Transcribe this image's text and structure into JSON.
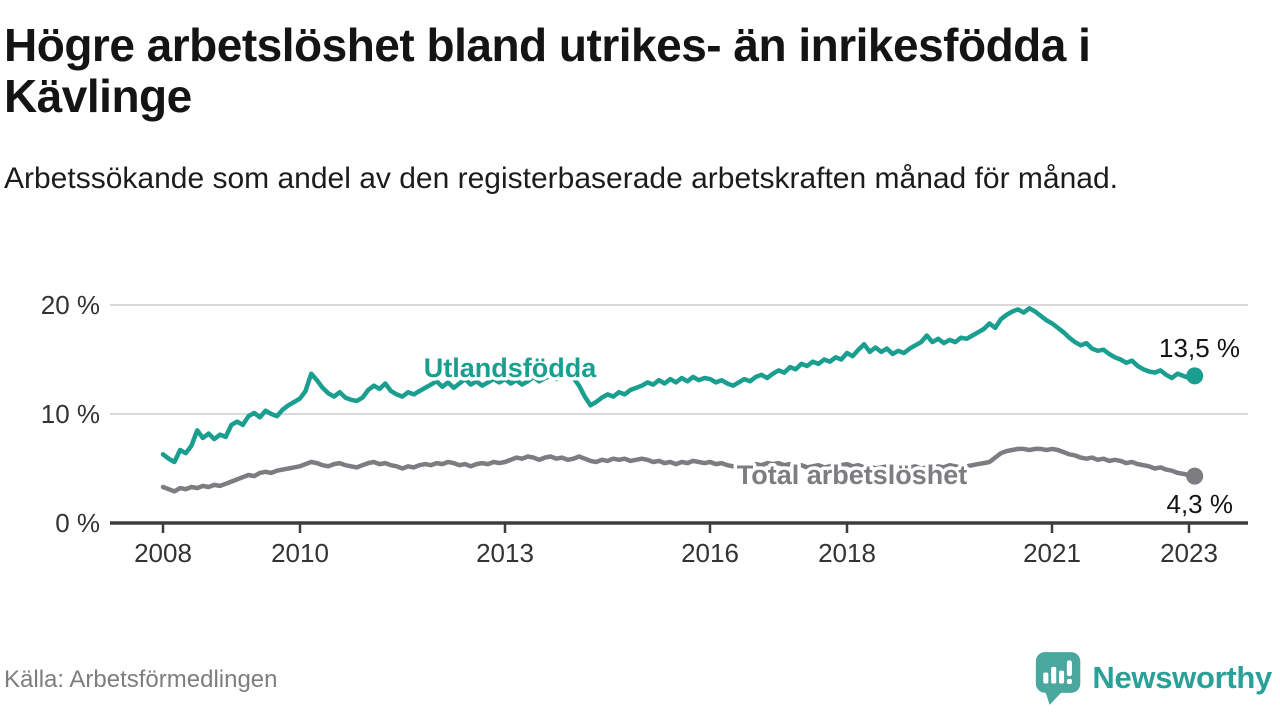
{
  "header": {
    "title": "Högre arbetslöshet bland utrikes- än inrikesfödda i Kävlinge",
    "subtitle": "Arbetssökande som andel av den registerbaserade arbetskraften månad för månad."
  },
  "chart_data": {
    "type": "line",
    "title": "Högre arbetslöshet bland utrikes- än inrikesfödda i Kävlinge",
    "subtitle": "Arbetssökande som andel av den registerbaserade arbetskraften månad för månad.",
    "x_unit": "month",
    "x_start": "2008-01",
    "x_end": "2023-02",
    "x_ticks": [
      "2008",
      "2010",
      "2013",
      "2016",
      "2018",
      "2021",
      "2023"
    ],
    "y_tick_labels": [
      "20 %",
      "10 %",
      "0 %"
    ],
    "ylim": [
      0,
      21
    ],
    "grid": true,
    "legend_position": "inline-labels",
    "series": [
      {
        "name": "Utlandsfödda",
        "color": "#1a9e8f",
        "end_label": "13,5 %",
        "end_value": 13.5,
        "values": [
          6.3,
          5.9,
          5.6,
          6.7,
          6.4,
          7.1,
          8.5,
          7.8,
          8.2,
          7.7,
          8.1,
          7.9,
          9.0,
          9.3,
          9.0,
          9.8,
          10.1,
          9.7,
          10.3,
          10.0,
          9.8,
          10.4,
          10.8,
          11.1,
          11.4,
          12.1,
          13.7,
          13.1,
          12.4,
          11.9,
          11.6,
          12.0,
          11.5,
          11.3,
          11.2,
          11.5,
          12.2,
          12.6,
          12.3,
          12.8,
          12.1,
          11.8,
          11.6,
          12.0,
          11.8,
          12.1,
          12.4,
          12.7,
          13.0,
          12.5,
          12.9,
          12.4,
          12.8,
          13.2,
          12.7,
          13.0,
          12.6,
          12.9,
          13.2,
          12.9,
          13.2,
          12.8,
          13.1,
          12.7,
          13.0,
          13.4,
          13.0,
          13.3,
          13.5,
          13.2,
          13.6,
          13.8,
          13.3,
          12.6,
          11.6,
          10.8,
          11.1,
          11.5,
          11.8,
          11.6,
          12.0,
          11.8,
          12.2,
          12.4,
          12.6,
          12.9,
          12.7,
          13.1,
          12.8,
          13.2,
          12.9,
          13.3,
          13.0,
          13.4,
          13.1,
          13.3,
          13.2,
          12.9,
          13.1,
          12.8,
          12.6,
          12.9,
          13.2,
          13.0,
          13.4,
          13.6,
          13.3,
          13.7,
          14.0,
          13.8,
          14.3,
          14.1,
          14.6,
          14.4,
          14.8,
          14.6,
          15.0,
          14.8,
          15.2,
          15.0,
          15.6,
          15.3,
          15.9,
          16.4,
          15.7,
          16.1,
          15.7,
          16.0,
          15.5,
          15.8,
          15.6,
          16.0,
          16.3,
          16.6,
          17.2,
          16.6,
          16.9,
          16.5,
          16.8,
          16.6,
          17.0,
          16.9,
          17.2,
          17.5,
          17.8,
          18.3,
          17.9,
          18.7,
          19.1,
          19.4,
          19.6,
          19.3,
          19.7,
          19.4,
          19.0,
          18.6,
          18.3,
          17.9,
          17.5,
          17.0,
          16.6,
          16.3,
          16.5,
          16.0,
          15.8,
          15.9,
          15.5,
          15.2,
          15.0,
          14.7,
          14.9,
          14.4,
          14.1,
          13.9,
          13.8,
          14.0,
          13.6,
          13.3,
          13.7,
          13.5,
          13.3,
          13.5
        ]
      },
      {
        "name": "Total arbetslöshet",
        "color": "#7d7d81",
        "end_label": "4,3 %",
        "end_value": 4.3,
        "values": [
          3.3,
          3.1,
          2.9,
          3.2,
          3.1,
          3.3,
          3.2,
          3.4,
          3.3,
          3.5,
          3.4,
          3.6,
          3.8,
          4.0,
          4.2,
          4.4,
          4.3,
          4.6,
          4.7,
          4.6,
          4.8,
          4.9,
          5.0,
          5.1,
          5.2,
          5.4,
          5.6,
          5.5,
          5.3,
          5.2,
          5.4,
          5.5,
          5.3,
          5.2,
          5.1,
          5.3,
          5.5,
          5.6,
          5.4,
          5.5,
          5.3,
          5.2,
          5.0,
          5.2,
          5.1,
          5.3,
          5.4,
          5.3,
          5.5,
          5.4,
          5.6,
          5.5,
          5.3,
          5.4,
          5.2,
          5.4,
          5.5,
          5.4,
          5.6,
          5.5,
          5.6,
          5.8,
          6.0,
          5.9,
          6.1,
          6.0,
          5.8,
          6.0,
          6.1,
          5.9,
          6.0,
          5.8,
          5.9,
          6.1,
          5.9,
          5.7,
          5.6,
          5.8,
          5.7,
          5.9,
          5.8,
          5.9,
          5.7,
          5.8,
          5.9,
          5.8,
          5.6,
          5.7,
          5.5,
          5.6,
          5.4,
          5.6,
          5.5,
          5.7,
          5.6,
          5.5,
          5.6,
          5.4,
          5.5,
          5.3,
          5.2,
          5.1,
          5.3,
          5.2,
          5.4,
          5.3,
          5.5,
          5.4,
          5.5,
          5.3,
          5.4,
          5.2,
          5.3,
          5.1,
          5.2,
          5.3,
          5.1,
          5.2,
          5.4,
          5.3,
          5.4,
          5.2,
          5.3,
          5.1,
          5.2,
          5.0,
          5.1,
          5.2,
          5.0,
          5.1,
          5.2,
          5.1,
          5.2,
          5.0,
          5.1,
          5.0,
          5.2,
          5.1,
          5.3,
          5.2,
          5.1,
          5.2,
          5.3,
          5.4,
          5.5,
          5.6,
          6.0,
          6.4,
          6.6,
          6.7,
          6.8,
          6.8,
          6.7,
          6.8,
          6.8,
          6.7,
          6.8,
          6.7,
          6.5,
          6.3,
          6.2,
          6.0,
          5.9,
          6.0,
          5.8,
          5.9,
          5.7,
          5.8,
          5.7,
          5.5,
          5.6,
          5.4,
          5.3,
          5.2,
          5.0,
          5.1,
          4.9,
          4.8,
          4.6,
          4.5,
          4.4,
          4.3
        ]
      }
    ]
  },
  "footer": {
    "source": "Källa: Arbetsförmedlingen",
    "brand": "Newsworthy"
  }
}
